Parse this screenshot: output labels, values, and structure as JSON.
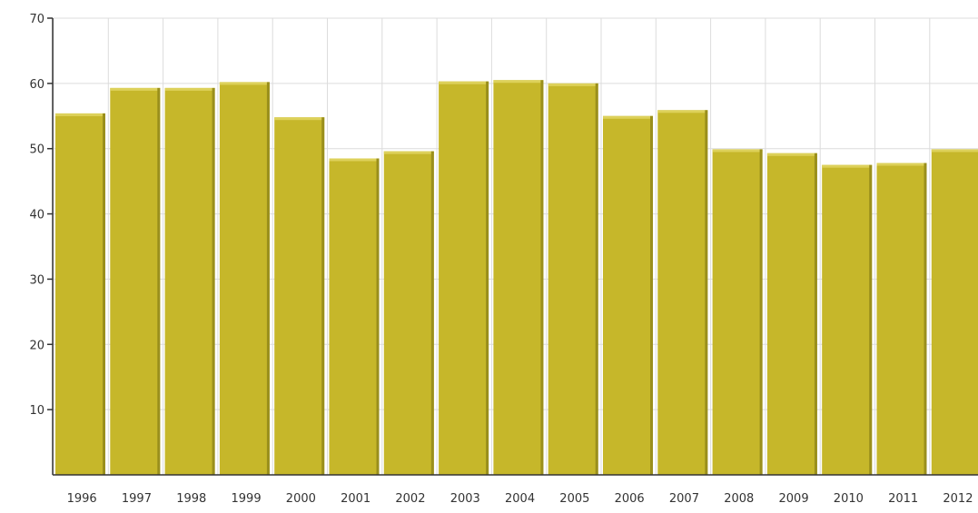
{
  "chart_data": {
    "type": "bar",
    "categories": [
      "1996",
      "1997",
      "1998",
      "1999",
      "2000",
      "2001",
      "2002",
      "2003",
      "2004",
      "2005",
      "2006",
      "2007",
      "2008",
      "2009",
      "2010",
      "2011",
      "2012"
    ],
    "values": [
      55.4,
      59.3,
      59.3,
      60.2,
      54.8,
      48.5,
      49.6,
      60.3,
      60.5,
      60.0,
      55.0,
      55.9,
      49.9,
      49.3,
      47.5,
      47.8,
      49.9
    ],
    "ylim": [
      0,
      70
    ],
    "yticks": [
      "10",
      "20",
      "30",
      "40",
      "50",
      "60",
      "70"
    ],
    "grid": true,
    "colors": {
      "bar": "#c6b72a",
      "bar_side": "#9a8f1c",
      "bar_top": "#ddd15a"
    }
  }
}
